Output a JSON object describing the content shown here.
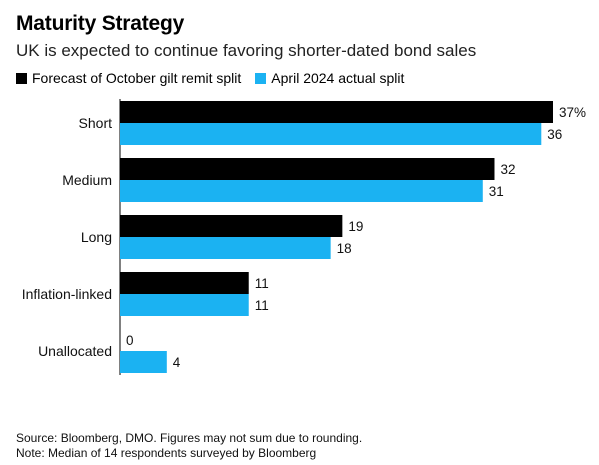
{
  "chart_data": {
    "type": "bar",
    "orientation": "horizontal",
    "title": "Maturity Strategy",
    "subtitle": "UK is expected to continue favoring shorter-dated bond sales",
    "categories": [
      "Short",
      "Medium",
      "Long",
      "Inflation-linked",
      "Unallocated"
    ],
    "series": [
      {
        "name": "Forecast of October gilt remit split",
        "color": "#000000",
        "values": [
          37,
          32,
          19,
          11,
          0
        ],
        "value_labels": [
          "37%",
          "32",
          "19",
          "11",
          "0"
        ]
      },
      {
        "name": "April 2024 actual split",
        "color": "#1bb2f2",
        "values": [
          36,
          31,
          18,
          11,
          4
        ],
        "value_labels": [
          "36",
          "31",
          "18",
          "11",
          "4"
        ]
      }
    ],
    "xlim": [
      0,
      40
    ],
    "grid": false,
    "legend_position": "top-left"
  },
  "footer": {
    "source": "Source: Bloomberg, DMO. Figures may not sum due to rounding.",
    "note": "Note: Median of 14 respondents surveyed by Bloomberg"
  }
}
